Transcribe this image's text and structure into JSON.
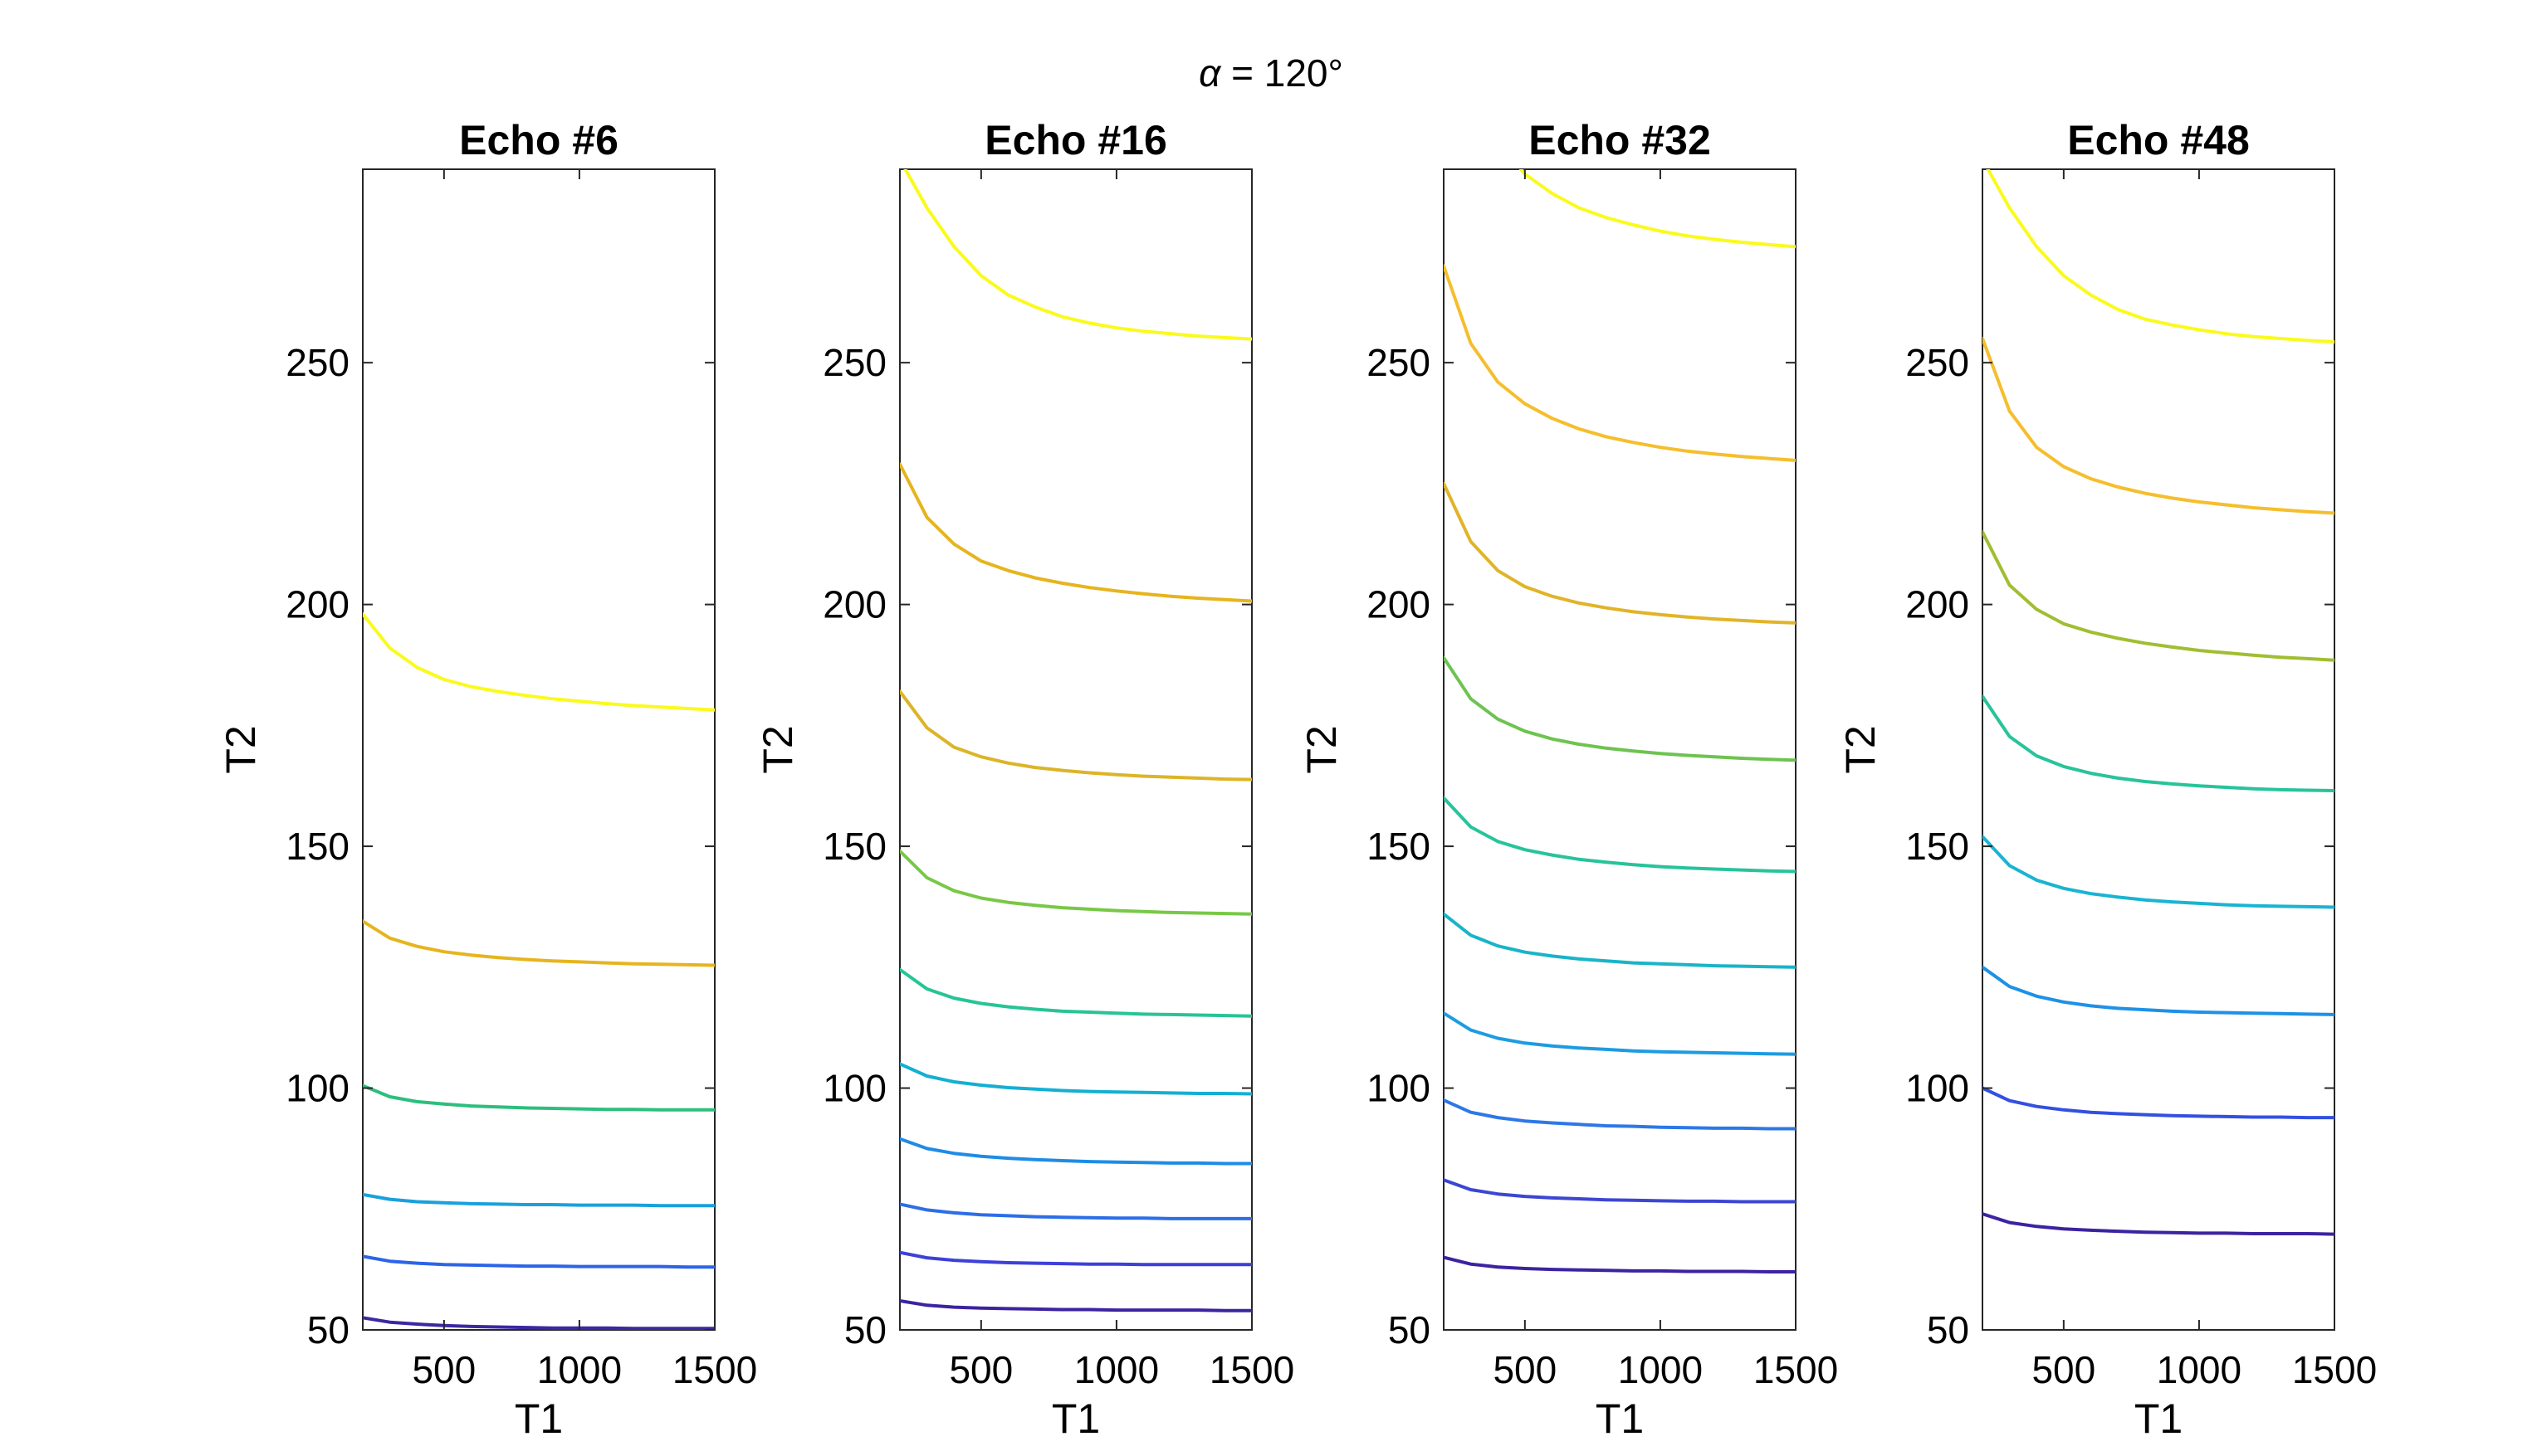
{
  "chart_data": {
    "type": "line",
    "suptitle_symbol": "α",
    "suptitle_rest": " = 120°",
    "xlim": [
      200,
      1500
    ],
    "ylim": [
      50,
      290
    ],
    "xticks": [
      500,
      1000,
      1500
    ],
    "yticks": [
      50,
      100,
      150,
      200,
      250
    ],
    "x": [
      200,
      300,
      400,
      500,
      600,
      700,
      800,
      900,
      1000,
      1100,
      1200,
      1300,
      1400,
      1500
    ],
    "panels": [
      {
        "title": "Echo #6",
        "xlabel": "T1",
        "ylabel": "T2",
        "series": [
          {
            "color": "#fafa1e",
            "values": [
              198,
              191,
              187,
              184.5,
              183,
              182,
              181.2,
              180.5,
              180,
              179.5,
              179.1,
              178.8,
              178.5,
              178.2
            ]
          },
          {
            "color": "#e6b41e",
            "values": [
              134.5,
              131,
              129.3,
              128.2,
              127.5,
              127,
              126.6,
              126.3,
              126.1,
              125.9,
              125.7,
              125.6,
              125.5,
              125.4
            ]
          },
          {
            "color": "#2dbe7d",
            "values": [
              100.5,
              98.2,
              97.2,
              96.7,
              96.3,
              96.1,
              95.9,
              95.8,
              95.7,
              95.6,
              95.6,
              95.5,
              95.5,
              95.5
            ]
          },
          {
            "color": "#1aa0dc",
            "values": [
              78,
              77,
              76.5,
              76.3,
              76.1,
              76,
              75.9,
              75.9,
              75.8,
              75.8,
              75.8,
              75.7,
              75.7,
              75.7
            ]
          },
          {
            "color": "#2d64e6",
            "values": [
              65.2,
              64.2,
              63.8,
              63.5,
              63.4,
              63.3,
              63.2,
              63.2,
              63.1,
              63.1,
              63.1,
              63.1,
              63,
              63
            ]
          },
          {
            "color": "#3c28a0",
            "values": [
              52.5,
              51.6,
              51.2,
              50.9,
              50.7,
              50.6,
              50.5,
              50.4,
              50.4,
              50.4,
              50.3,
              50.3,
              50.3,
              50.3
            ]
          }
        ]
      },
      {
        "title": "Echo #16",
        "xlabel": "T1",
        "ylabel": "T2",
        "series": [
          {
            "color": "#fafa1e",
            "values": [
              292,
              282,
              274,
              268,
              264,
              261.5,
              259.5,
              258.2,
              257.2,
              256.5,
              256,
              255.5,
              255.2,
              254.9
            ]
          },
          {
            "color": "#e6b41e",
            "values": [
              229,
              218,
              212.5,
              209,
              207,
              205.5,
              204.4,
              203.5,
              202.8,
              202.2,
              201.7,
              201.3,
              201,
              200.7
            ]
          },
          {
            "color": "#dcb428",
            "values": [
              182,
              174.5,
              170.5,
              168.5,
              167.2,
              166.3,
              165.7,
              165.2,
              164.8,
              164.5,
              164.3,
              164.1,
              163.9,
              163.8
            ]
          },
          {
            "color": "#78c846",
            "values": [
              149,
              143.5,
              140.8,
              139.3,
              138.4,
              137.8,
              137.3,
              137,
              136.7,
              136.5,
              136.3,
              136.2,
              136.1,
              136
            ]
          },
          {
            "color": "#28c396",
            "values": [
              124.5,
              120.5,
              118.6,
              117.5,
              116.8,
              116.3,
              115.9,
              115.7,
              115.5,
              115.3,
              115.2,
              115.1,
              115,
              114.9
            ]
          },
          {
            "color": "#14afd2",
            "values": [
              105,
              102.5,
              101.3,
              100.6,
              100.1,
              99.8,
              99.5,
              99.3,
              99.2,
              99.1,
              99,
              98.9,
              98.9,
              98.8
            ]
          },
          {
            "color": "#1e8ce6",
            "values": [
              89.5,
              87.5,
              86.5,
              85.9,
              85.5,
              85.2,
              85,
              84.8,
              84.7,
              84.6,
              84.5,
              84.5,
              84.4,
              84.4
            ]
          },
          {
            "color": "#2d6ee6",
            "values": [
              76,
              74.8,
              74.2,
              73.8,
              73.6,
              73.4,
              73.3,
              73.2,
              73.1,
              73.1,
              73,
              73,
              73,
              73
            ]
          },
          {
            "color": "#3c41d7",
            "values": [
              66,
              64.9,
              64.4,
              64.1,
              63.9,
              63.8,
              63.7,
              63.6,
              63.6,
              63.5,
              63.5,
              63.5,
              63.5,
              63.5
            ]
          },
          {
            "color": "#3c23a0",
            "values": [
              56,
              55.1,
              54.7,
              54.5,
              54.4,
              54.3,
              54.2,
              54.2,
              54.1,
              54.1,
              54.1,
              54.1,
              54,
              54
            ]
          }
        ]
      },
      {
        "title": "Echo #32",
        "xlabel": "T1",
        "ylabel": "T2",
        "series": [
          {
            "color": "#fafa1e",
            "values": [
              320,
              305,
              296,
              289,
              285,
              282,
              280,
              278.5,
              277.2,
              276.2,
              275.5,
              274.9,
              274.4,
              274
            ]
          },
          {
            "color": "#f5be2d",
            "values": [
              270,
              254,
              246,
              241.5,
              238.5,
              236.3,
              234.7,
              233.5,
              232.5,
              231.7,
              231.1,
              230.6,
              230.2,
              229.8
            ]
          },
          {
            "color": "#e1b428",
            "values": [
              225,
              213,
              207,
              203.7,
              201.7,
              200.3,
              199.3,
              198.5,
              197.9,
              197.4,
              197,
              196.7,
              196.4,
              196.2
            ]
          },
          {
            "color": "#6ec350",
            "values": [
              189,
              180.5,
              176.3,
              173.8,
              172.2,
              171.1,
              170.3,
              169.7,
              169.2,
              168.8,
              168.5,
              168.2,
              168,
              167.8
            ]
          },
          {
            "color": "#28c39b",
            "values": [
              160,
              154,
              151,
              149.3,
              148.2,
              147.3,
              146.7,
              146.2,
              145.8,
              145.5,
              145.3,
              145.1,
              144.9,
              144.8
            ]
          },
          {
            "color": "#19b4c8",
            "values": [
              136,
              131.6,
              129.4,
              128.1,
              127.3,
              126.7,
              126.3,
              125.9,
              125.7,
              125.5,
              125.3,
              125.2,
              125.1,
              125
            ]
          },
          {
            "color": "#1e9be1",
            "values": [
              115.5,
              112,
              110.3,
              109.3,
              108.7,
              108.3,
              108,
              107.7,
              107.5,
              107.4,
              107.3,
              107.2,
              107.1,
              107
            ]
          },
          {
            "color": "#2d78e6",
            "values": [
              97.5,
              95,
              93.9,
              93.2,
              92.8,
              92.5,
              92.2,
              92.1,
              91.9,
              91.8,
              91.7,
              91.7,
              91.6,
              91.6
            ]
          },
          {
            "color": "#3c46d2",
            "values": [
              81,
              79,
              78.1,
              77.6,
              77.3,
              77.1,
              76.9,
              76.8,
              76.7,
              76.6,
              76.6,
              76.5,
              76.5,
              76.5
            ]
          },
          {
            "color": "#3c23a0",
            "values": [
              65,
              63.6,
              63,
              62.7,
              62.5,
              62.4,
              62.3,
              62.2,
              62.2,
              62.1,
              62.1,
              62.1,
              62,
              62
            ]
          }
        ]
      },
      {
        "title": "Echo #48",
        "xlabel": "T1",
        "ylabel": "T2",
        "series": [
          {
            "color": "#fafa1e",
            "values": [
              292,
              282,
              274,
              268,
              264,
              261,
              259,
              257.8,
              256.8,
              256,
              255.4,
              255,
              254.6,
              254.3
            ]
          },
          {
            "color": "#f5be2d",
            "values": [
              255,
              240,
              232.5,
              228.5,
              226,
              224.3,
              223,
              222,
              221.2,
              220.6,
              220,
              219.6,
              219.2,
              218.9
            ]
          },
          {
            "color": "#a0be32",
            "values": [
              215,
              204,
              199,
              196,
              194.3,
              193,
              192,
              191.2,
              190.5,
              190,
              189.5,
              189.1,
              188.8,
              188.5
            ]
          },
          {
            "color": "#28c39b",
            "values": [
              181,
              172.7,
              168.7,
              166.5,
              165.1,
              164.1,
              163.4,
              162.9,
              162.5,
              162.2,
              161.9,
              161.7,
              161.6,
              161.5
            ]
          },
          {
            "color": "#19b4d2",
            "values": [
              152,
              146,
              143,
              141.3,
              140.2,
              139.5,
              138.9,
              138.5,
              138.2,
              137.9,
              137.7,
              137.6,
              137.5,
              137.4
            ]
          },
          {
            "color": "#1e91e6",
            "values": [
              125,
              121,
              119,
              117.8,
              117,
              116.5,
              116.2,
              115.9,
              115.7,
              115.6,
              115.5,
              115.4,
              115.3,
              115.2
            ]
          },
          {
            "color": "#3250e1",
            "values": [
              100,
              97.4,
              96.2,
              95.5,
              95,
              94.7,
              94.5,
              94.3,
              94.2,
              94.1,
              94,
              94,
              93.9,
              93.9
            ]
          },
          {
            "color": "#3c23a0",
            "values": [
              74,
              72.2,
              71.4,
              70.9,
              70.6,
              70.4,
              70.2,
              70.1,
              70,
              70,
              69.9,
              69.9,
              69.9,
              69.8
            ]
          }
        ]
      }
    ]
  }
}
